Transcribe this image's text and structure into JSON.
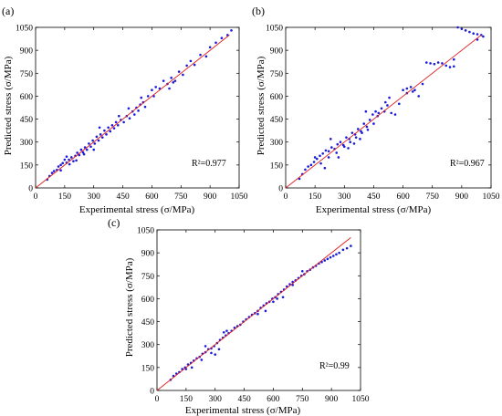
{
  "chart_data": [
    {
      "panel_label": "(a)",
      "type": "scatter",
      "xlabel": "Experimental stress (σ/MPa)",
      "ylabel": "Predicted stress (σ/MPa)",
      "annotation": "R²=0.977",
      "xlim": [
        0,
        1050
      ],
      "ylim": [
        0,
        1050
      ],
      "xticks": [
        "0",
        "150",
        "300",
        "450",
        "600",
        "750",
        "900",
        "1050"
      ],
      "yticks": [
        "0",
        "150",
        "300",
        "450",
        "600",
        "750",
        "900",
        "1050"
      ],
      "fit_line": [
        [
          0,
          0
        ],
        [
          1000,
          1000
        ]
      ],
      "points": [
        [
          60,
          55
        ],
        [
          72,
          78
        ],
        [
          85,
          98
        ],
        [
          95,
          110
        ],
        [
          110,
          118
        ],
        [
          118,
          140
        ],
        [
          130,
          150
        ],
        [
          140,
          162
        ],
        [
          150,
          185
        ],
        [
          160,
          165
        ],
        [
          172,
          185
        ],
        [
          185,
          200
        ],
        [
          195,
          175
        ],
        [
          205,
          210
        ],
        [
          215,
          230
        ],
        [
          225,
          215
        ],
        [
          235,
          250
        ],
        [
          245,
          232
        ],
        [
          255,
          265
        ],
        [
          265,
          250
        ],
        [
          275,
          290
        ],
        [
          285,
          270
        ],
        [
          295,
          310
        ],
        [
          305,
          290
        ],
        [
          315,
          335
        ],
        [
          325,
          310
        ],
        [
          335,
          350
        ],
        [
          345,
          330
        ],
        [
          355,
          375
        ],
        [
          365,
          350
        ],
        [
          375,
          395
        ],
        [
          385,
          370
        ],
        [
          395,
          410
        ],
        [
          405,
          390
        ],
        [
          415,
          430
        ],
        [
          425,
          410
        ],
        [
          440,
          445
        ],
        [
          455,
          430
        ],
        [
          470,
          470
        ],
        [
          485,
          455
        ],
        [
          500,
          500
        ],
        [
          510,
          480
        ],
        [
          520,
          525
        ],
        [
          530,
          505
        ],
        [
          540,
          545
        ],
        [
          555,
          560
        ],
        [
          565,
          530
        ],
        [
          580,
          600
        ],
        [
          600,
          640
        ],
        [
          620,
          660
        ],
        [
          640,
          650
        ],
        [
          660,
          700
        ],
        [
          680,
          680
        ],
        [
          700,
          720
        ],
        [
          720,
          700
        ],
        [
          740,
          760
        ],
        [
          760,
          740
        ],
        [
          780,
          800
        ],
        [
          800,
          830
        ],
        [
          820,
          805
        ],
        [
          850,
          870
        ],
        [
          880,
          860
        ],
        [
          900,
          920
        ],
        [
          930,
          950
        ],
        [
          960,
          980
        ],
        [
          990,
          1000
        ],
        [
          1010,
          1030
        ],
        [
          160,
          205
        ],
        [
          210,
          180
        ],
        [
          330,
          395
        ],
        [
          430,
          470
        ],
        [
          545,
          590
        ],
        [
          610,
          600
        ],
        [
          690,
          650
        ],
        [
          710,
          690
        ],
        [
          250,
          220
        ],
        [
          300,
          250
        ],
        [
          130,
          115
        ],
        [
          175,
          155
        ],
        [
          480,
          520
        ]
      ]
    },
    {
      "panel_label": "(b)",
      "type": "scatter",
      "xlabel": "Experimental stress (σ/MPa)",
      "ylabel": "Predicted stress (σ/MPa)",
      "annotation": "R²=0.967",
      "xlim": [
        0,
        1050
      ],
      "ylim": [
        0,
        1050
      ],
      "xticks": [
        "0",
        "150",
        "300",
        "450",
        "600",
        "750",
        "900",
        "1050"
      ],
      "yticks": [
        "0",
        "150",
        "300",
        "450",
        "600",
        "750",
        "900",
        "1050"
      ],
      "fit_line": [
        [
          0,
          0
        ],
        [
          1000,
          1000
        ]
      ],
      "points": [
        [
          70,
          60
        ],
        [
          85,
          90
        ],
        [
          100,
          120
        ],
        [
          115,
          140
        ],
        [
          130,
          150
        ],
        [
          145,
          170
        ],
        [
          160,
          190
        ],
        [
          175,
          210
        ],
        [
          190,
          225
        ],
        [
          205,
          245
        ],
        [
          220,
          240
        ],
        [
          235,
          265
        ],
        [
          250,
          255
        ],
        [
          265,
          285
        ],
        [
          280,
          300
        ],
        [
          295,
          280
        ],
        [
          310,
          330
        ],
        [
          325,
          320
        ],
        [
          340,
          360
        ],
        [
          355,
          350
        ],
        [
          370,
          385
        ],
        [
          385,
          370
        ],
        [
          400,
          420
        ],
        [
          415,
          400
        ],
        [
          430,
          445
        ],
        [
          445,
          480
        ],
        [
          460,
          500
        ],
        [
          475,
          490
        ],
        [
          490,
          520
        ],
        [
          505,
          500
        ],
        [
          520,
          540
        ],
        [
          540,
          490
        ],
        [
          560,
          480
        ],
        [
          580,
          550
        ],
        [
          600,
          640
        ],
        [
          620,
          650
        ],
        [
          640,
          660
        ],
        [
          660,
          640
        ],
        [
          680,
          600
        ],
        [
          700,
          680
        ],
        [
          720,
          820
        ],
        [
          740,
          815
        ],
        [
          760,
          810
        ],
        [
          780,
          820
        ],
        [
          800,
          815
        ],
        [
          820,
          800
        ],
        [
          840,
          790
        ],
        [
          860,
          795
        ],
        [
          880,
          1050
        ],
        [
          900,
          1040
        ],
        [
          920,
          1030
        ],
        [
          940,
          1020
        ],
        [
          960,
          1010
        ],
        [
          980,
          1005
        ],
        [
          1000,
          1000
        ],
        [
          1010,
          990
        ],
        [
          180,
          160
        ],
        [
          220,
          200
        ],
        [
          260,
          230
        ],
        [
          300,
          270
        ],
        [
          330,
          300
        ],
        [
          360,
          330
        ],
        [
          390,
          360
        ],
        [
          420,
          380
        ],
        [
          470,
          470
        ],
        [
          510,
          560
        ],
        [
          530,
          590
        ],
        [
          450,
          420
        ],
        [
          410,
          500
        ],
        [
          230,
          320
        ],
        [
          270,
          200
        ],
        [
          320,
          260
        ],
        [
          150,
          200
        ],
        [
          200,
          130
        ],
        [
          350,
          290
        ],
        [
          380,
          320
        ],
        [
          620,
          620
        ],
        [
          650,
          630
        ],
        [
          860,
          840
        ],
        [
          980,
          970
        ]
      ]
    },
    {
      "panel_label": "(c)",
      "type": "scatter",
      "xlabel": "Experimental stress (σ/MPa)",
      "ylabel": "Predicted stress (σ/MPa)",
      "annotation": "R²=0.99",
      "xlim": [
        0,
        1050
      ],
      "ylim": [
        0,
        1050
      ],
      "xticks": [
        "0",
        "150",
        "300",
        "450",
        "600",
        "750",
        "900",
        "1050"
      ],
      "yticks": [
        "0",
        "150",
        "300",
        "450",
        "600",
        "750",
        "900",
        "1050"
      ],
      "fit_line": [
        [
          0,
          0
        ],
        [
          1000,
          1000
        ]
      ],
      "points": [
        [
          70,
          70
        ],
        [
          85,
          95
        ],
        [
          100,
          110
        ],
        [
          115,
          120
        ],
        [
          130,
          140
        ],
        [
          145,
          150
        ],
        [
          160,
          170
        ],
        [
          175,
          180
        ],
        [
          190,
          195
        ],
        [
          205,
          210
        ],
        [
          220,
          220
        ],
        [
          235,
          240
        ],
        [
          250,
          250
        ],
        [
          265,
          270
        ],
        [
          280,
          275
        ],
        [
          295,
          290
        ],
        [
          310,
          310
        ],
        [
          325,
          330
        ],
        [
          340,
          345
        ],
        [
          355,
          360
        ],
        [
          370,
          375
        ],
        [
          385,
          390
        ],
        [
          400,
          410
        ],
        [
          415,
          420
        ],
        [
          430,
          430
        ],
        [
          445,
          450
        ],
        [
          460,
          465
        ],
        [
          475,
          480
        ],
        [
          490,
          495
        ],
        [
          505,
          505
        ],
        [
          520,
          520
        ],
        [
          535,
          540
        ],
        [
          550,
          555
        ],
        [
          565,
          570
        ],
        [
          580,
          580
        ],
        [
          595,
          600
        ],
        [
          610,
          610
        ],
        [
          625,
          630
        ],
        [
          640,
          645
        ],
        [
          655,
          660
        ],
        [
          670,
          680
        ],
        [
          685,
          695
        ],
        [
          700,
          710
        ],
        [
          715,
          720
        ],
        [
          730,
          735
        ],
        [
          745,
          750
        ],
        [
          760,
          760
        ],
        [
          775,
          780
        ],
        [
          790,
          790
        ],
        [
          805,
          805
        ],
        [
          820,
          815
        ],
        [
          835,
          830
        ],
        [
          850,
          840
        ],
        [
          865,
          850
        ],
        [
          880,
          860
        ],
        [
          895,
          870
        ],
        [
          910,
          880
        ],
        [
          925,
          890
        ],
        [
          940,
          900
        ],
        [
          960,
          920
        ],
        [
          980,
          930
        ],
        [
          1000,
          945
        ],
        [
          280,
          245
        ],
        [
          300,
          235
        ],
        [
          320,
          270
        ],
        [
          345,
          380
        ],
        [
          360,
          390
        ],
        [
          520,
          500
        ],
        [
          560,
          520
        ],
        [
          600,
          580
        ],
        [
          620,
          600
        ],
        [
          650,
          610
        ],
        [
          700,
          690
        ],
        [
          750,
          780
        ],
        [
          230,
          200
        ],
        [
          250,
          290
        ],
        [
          150,
          140
        ],
        [
          180,
          150
        ]
      ]
    }
  ]
}
